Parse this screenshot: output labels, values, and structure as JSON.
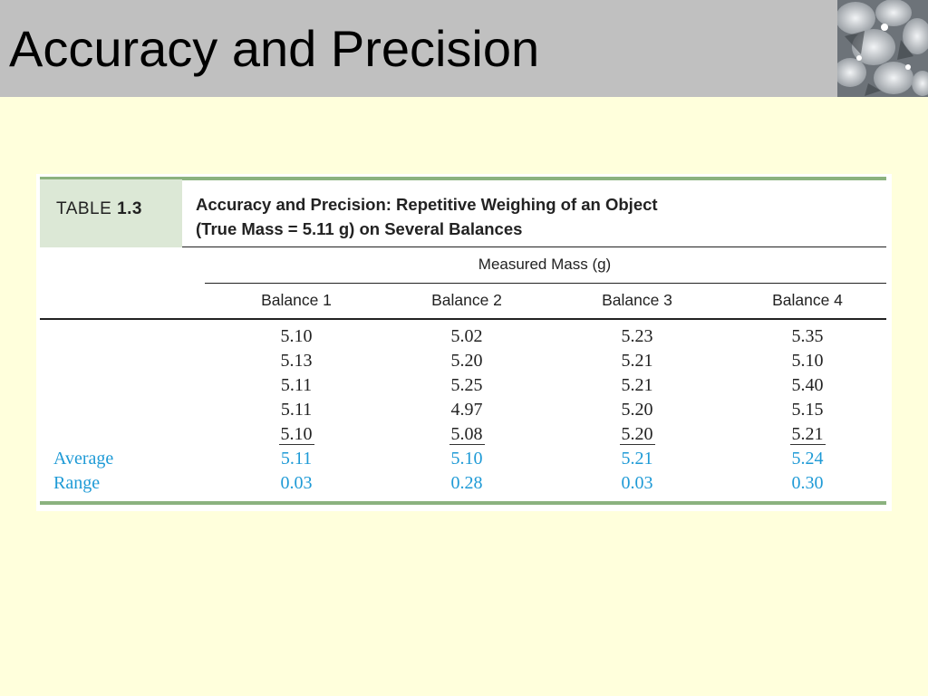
{
  "slide": {
    "title": "Accuracy and Precision"
  },
  "table": {
    "label_prefix": "TABLE",
    "label_number": "1.3",
    "caption_line1": "Accuracy and Precision: Repetitive Weighing of an Object",
    "caption_line2": "(True Mass = 5.11 g) on Several Balances",
    "span_header": "Measured Mass (g)",
    "columns": [
      "Balance 1",
      "Balance 2",
      "Balance 3",
      "Balance 4"
    ],
    "measurements": [
      [
        "5.10",
        "5.02",
        "5.23",
        "5.35"
      ],
      [
        "5.13",
        "5.20",
        "5.21",
        "5.10"
      ],
      [
        "5.11",
        "5.25",
        "5.21",
        "5.40"
      ],
      [
        "5.11",
        "4.97",
        "5.20",
        "5.15"
      ],
      [
        "5.10",
        "5.08",
        "5.20",
        "5.21"
      ]
    ],
    "average_label": "Average",
    "averages": [
      "5.11",
      "5.10",
      "5.21",
      "5.24"
    ],
    "range_label": "Range",
    "ranges": [
      "0.03",
      "0.28",
      "0.03",
      "0.30"
    ]
  },
  "colors": {
    "title_bar": "#c0c0c0",
    "slide_background": "#ffffdc",
    "table_accent_green": "#8bb27f",
    "label_fill": "#dce8d6",
    "summary_blue": "#1e9ad6"
  },
  "icons": {
    "corner_image": "ice-texture-image"
  }
}
